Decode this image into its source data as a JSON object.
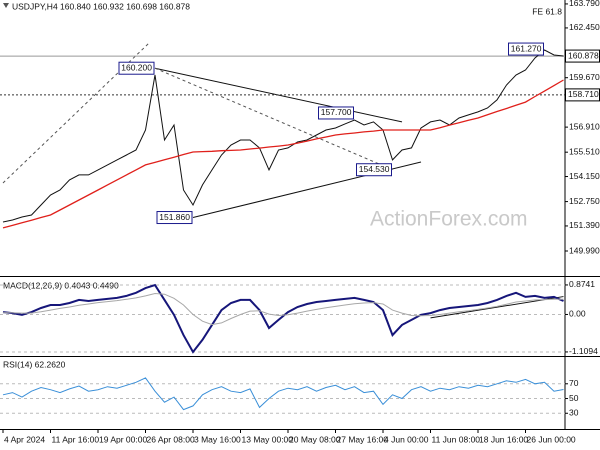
{
  "watermark": "ActionForex.com",
  "fe_label": "FE 61.8",
  "chart_data": [
    {
      "type": "line",
      "title": "USDJPY,H4 160.840 160.932 160.698 160.878",
      "categories": [
        "4 Apr 2024",
        null,
        null,
        null,
        null,
        "11 Apr 16:00",
        null,
        null,
        null,
        null,
        "19 Apr 00:00",
        null,
        null,
        null,
        null,
        "26 Apr 08:00",
        null,
        null,
        null,
        null,
        "3 May 16:00",
        null,
        null,
        null,
        null,
        "13 May 00:00",
        null,
        null,
        null,
        null,
        "20 May 08:00",
        null,
        null,
        null,
        null,
        "27 May 16:00",
        null,
        null,
        null,
        null,
        "4 Jun 00:00",
        null,
        null,
        null,
        null,
        "11 Jun 08:00",
        null,
        null,
        null,
        null,
        "18 Jun 16:00",
        null,
        null,
        null,
        null,
        "26 Jun 00:00",
        null,
        null,
        null,
        null
      ],
      "series": [
        {
          "color": "#111111",
          "values": [
            151.61,
            151.72,
            151.89,
            152.0,
            152.56,
            153.12,
            153.4,
            153.96,
            154.24,
            154.24,
            154.52,
            154.8,
            155.08,
            155.35,
            155.63,
            156.75,
            159.82,
            156.19,
            157.03,
            153.4,
            152.56,
            153.68,
            154.52,
            155.35,
            155.91,
            156.19,
            156.19,
            155.75,
            154.52,
            155.63,
            155.75,
            156.08,
            156.19,
            156.47,
            156.75,
            156.86,
            157.09,
            157.31,
            157.03,
            157.2,
            156.75,
            155.08,
            155.63,
            155.75,
            156.86,
            157.2,
            157.31,
            157.03,
            157.42,
            157.59,
            157.76,
            157.98,
            158.43,
            159.26,
            159.82,
            160.1,
            160.77,
            161.22,
            160.94,
            160.88
          ]
        },
        {
          "color": "#e0201b",
          "values": [
            151.28,
            151.42,
            151.57,
            151.71,
            151.86,
            152.0,
            152.28,
            152.56,
            152.84,
            153.12,
            153.4,
            153.68,
            153.96,
            154.24,
            154.52,
            154.8,
            154.94,
            155.09,
            155.23,
            155.38,
            155.52,
            155.54,
            155.56,
            155.59,
            155.61,
            155.63,
            155.69,
            155.74,
            155.8,
            155.85,
            155.91,
            156.02,
            156.13,
            156.25,
            156.36,
            156.47,
            156.53,
            156.58,
            156.64,
            156.69,
            156.75,
            156.75,
            156.75,
            156.75,
            156.75,
            156.75,
            156.88,
            157.02,
            157.15,
            157.29,
            157.42,
            157.6,
            157.78,
            157.95,
            158.13,
            158.31,
            158.62,
            158.92,
            159.23,
            159.54
          ]
        }
      ],
      "ylim": [
        148.65,
        164.01
      ],
      "yticks": [
        {
          "value": 163.79,
          "label": "163.790"
        },
        {
          "value": 162.45,
          "label": "162.450"
        },
        {
          "value": 159.67,
          "label": "159.670"
        },
        {
          "value": 156.91,
          "label": "156.910"
        },
        {
          "value": 155.51,
          "label": "155.510"
        },
        {
          "value": 154.15,
          "label": "154.150"
        },
        {
          "value": 152.75,
          "label": "152.750"
        },
        {
          "value": 151.39,
          "label": "151.390"
        },
        {
          "value": 149.99,
          "label": "149.990"
        }
      ],
      "grid": false,
      "hlines": [
        {
          "value": 160.878,
          "label": "160.878",
          "style": "solid"
        },
        {
          "value": 158.71,
          "label": "158.710",
          "style": "dotted"
        }
      ],
      "lines": [
        {
          "from": [
            16,
            160.2
          ],
          "to": [
            42,
            157.2
          ],
          "style": "solid"
        },
        {
          "from": [
            20,
            151.86
          ],
          "to": [
            44,
            154.96
          ],
          "style": "solid"
        },
        {
          "from": [
            0,
            153.79
          ],
          "to": [
            15.5,
            161.67
          ],
          "style": "dashed"
        },
        {
          "from": [
            16,
            160.2
          ],
          "to": [
            41,
            154.53
          ],
          "style": "dashed"
        }
      ],
      "annotations": [
        {
          "label": "160.200",
          "value": 160.2,
          "x": 16
        },
        {
          "label": "157.700",
          "value": 157.7,
          "x": 37
        },
        {
          "label": "154.530",
          "value": 154.53,
          "x": 41
        },
        {
          "label": "151.860",
          "value": 151.86,
          "x": 20
        },
        {
          "label": "161.270",
          "value": 161.27,
          "x": 57
        }
      ]
    },
    {
      "type": "line",
      "title": "MACD(12,26,9) 0.4043 0.4490",
      "series": [
        {
          "color": "#16167a",
          "values": [
            0.07,
            0.04,
            -0.01,
            0.07,
            0.19,
            0.28,
            0.28,
            0.34,
            0.43,
            0.4,
            0.43,
            0.46,
            0.49,
            0.55,
            0.64,
            0.78,
            0.87,
            0.43,
            -0.01,
            -0.61,
            -1.11,
            -0.75,
            -0.31,
            0.13,
            0.34,
            0.43,
            0.43,
            0.13,
            -0.4,
            -0.16,
            0.07,
            0.22,
            0.31,
            0.37,
            0.4,
            0.43,
            0.46,
            0.49,
            0.43,
            0.37,
            0.13,
            -0.61,
            -0.31,
            -0.16,
            -0.01,
            0.04,
            0.13,
            0.19,
            0.22,
            0.25,
            0.28,
            0.34,
            0.43,
            0.55,
            0.64,
            0.52,
            0.55,
            0.49,
            0.52,
            0.4
          ]
        },
        {
          "color": "#a8a8a8",
          "values": [
            0.05,
            0.05,
            0.04,
            0.04,
            0.08,
            0.13,
            0.18,
            0.22,
            0.27,
            0.31,
            0.35,
            0.38,
            0.41,
            0.45,
            0.49,
            0.55,
            0.62,
            0.6,
            0.48,
            0.28,
            0.0,
            -0.2,
            -0.3,
            -0.25,
            -0.12,
            0.0,
            0.1,
            0.11,
            0.01,
            -0.03,
            -0.01,
            0.04,
            0.1,
            0.15,
            0.2,
            0.24,
            0.28,
            0.32,
            0.34,
            0.35,
            0.31,
            0.13,
            0.04,
            -0.03,
            -0.04,
            -0.03,
            0.0,
            0.04,
            0.08,
            0.11,
            0.15,
            0.19,
            0.24,
            0.3,
            0.37,
            0.4,
            0.43,
            0.44,
            0.45,
            0.45
          ]
        }
      ],
      "ylim": [
        -1.2,
        1.05
      ],
      "yticks": [
        0.8741,
        {
          "value": 0,
          "label": "0.00"
        },
        -1.1094
      ],
      "grid": true,
      "lines": [
        {
          "from": [
            45,
            -0.1
          ],
          "to": [
            59,
            0.53
          ],
          "style": "solid"
        }
      ]
    },
    {
      "type": "line",
      "title": "RSI(14) 62.2620",
      "series": [
        {
          "color": "#3a8fd8",
          "values": [
            55,
            58,
            52,
            60,
            65,
            62,
            58,
            63,
            67,
            60,
            62,
            66,
            64,
            68,
            72,
            78,
            60,
            45,
            52,
            35,
            40,
            55,
            62,
            66,
            60,
            58,
            63,
            38,
            50,
            60,
            64,
            62,
            66,
            60,
            65,
            68,
            62,
            66,
            58,
            60,
            42,
            55,
            50,
            62,
            66,
            60,
            64,
            62,
            66,
            64,
            68,
            66,
            70,
            74,
            72,
            76,
            70,
            72,
            60,
            62.26
          ]
        }
      ],
      "ylim": [
        10,
        105
      ],
      "yticks": [
        70,
        50,
        30
      ],
      "grid": true
    }
  ]
}
